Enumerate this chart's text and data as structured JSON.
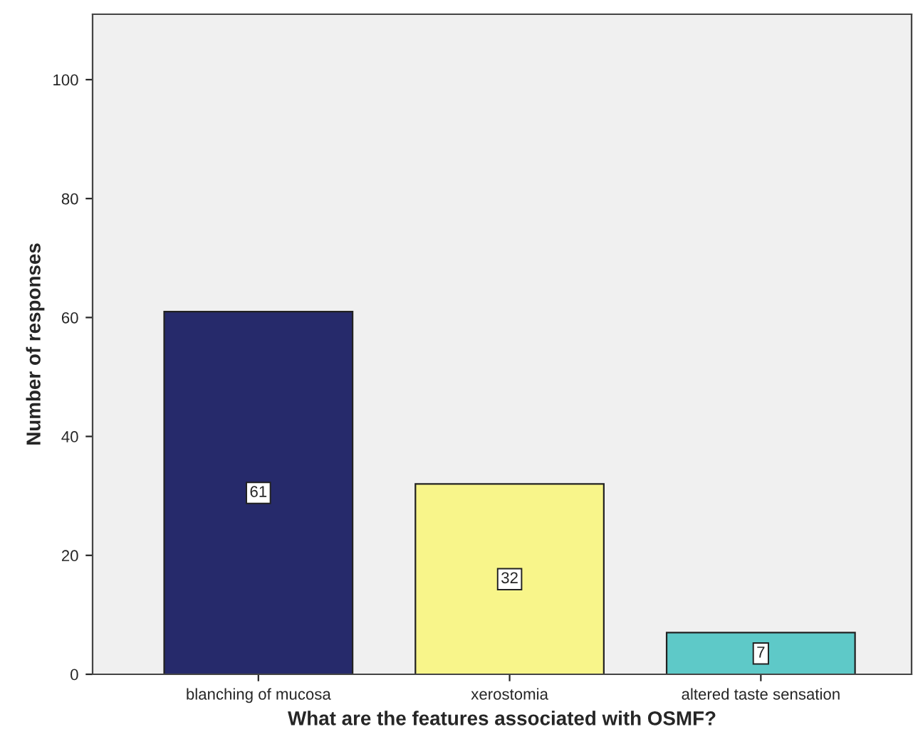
{
  "chart_data": {
    "type": "bar",
    "xlabel": "What are the features associated with OSMF?",
    "ylabel": "Number of responses",
    "categories": [
      "blanching of mucosa",
      "xerostomia",
      "altered taste sensation"
    ],
    "values": [
      61,
      32,
      7
    ],
    "colors": [
      "#262a6b",
      "#f8f58a",
      "#5ec9c8"
    ],
    "ylim": [
      0,
      111
    ],
    "yticks": [
      0,
      20,
      40,
      60,
      80,
      100
    ],
    "data_labels": true,
    "grid": false,
    "legend": false
  }
}
